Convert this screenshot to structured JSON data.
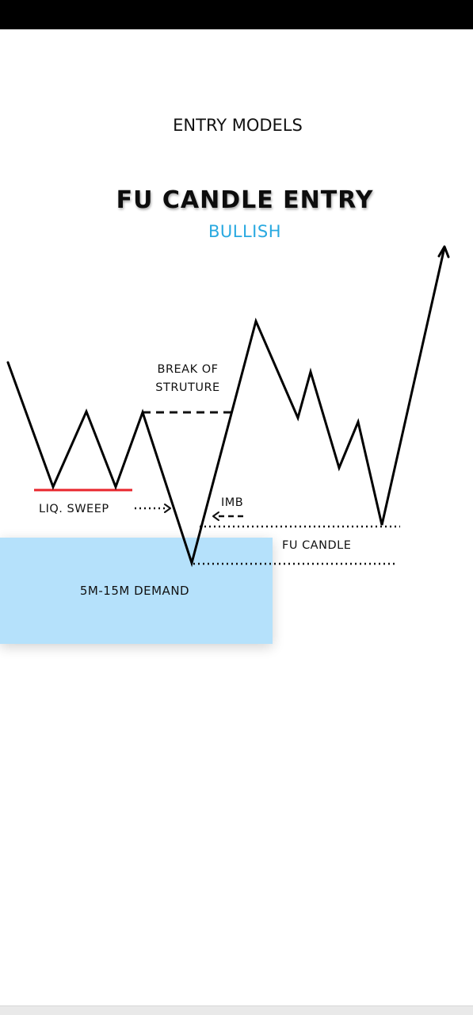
{
  "header": {
    "section_title": "ENTRY MODELS",
    "model_title": "FU CANDLE ENTRY",
    "bias": "BULLISH"
  },
  "annotations": {
    "break_of_structure_line1": "BREAK OF",
    "break_of_structure_line2": "STRUTURE",
    "liquidity_sweep": "LIQ. SWEEP",
    "imbalance": "IMB",
    "fu_candle": "FU CANDLE"
  },
  "zone": {
    "label": "5M-15M DEMAND"
  },
  "colors": {
    "price_line": "#000000",
    "sweep_line": "#e8262c",
    "demand_zone": "#b5e1fb",
    "bias_text": "#29a9e0",
    "top_bar": "#000000"
  }
}
